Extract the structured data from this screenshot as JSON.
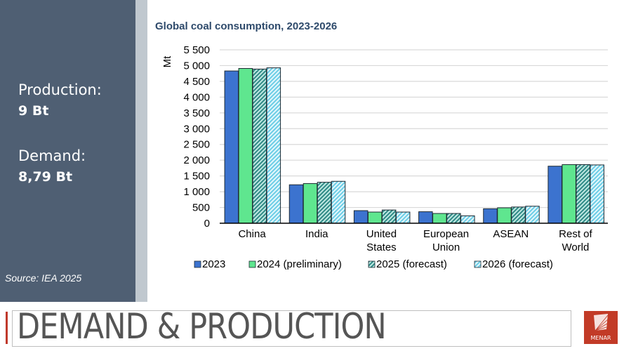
{
  "sidebar": {
    "production_label": "Production:",
    "production_value": "9 Bt",
    "demand_label": "Demand:",
    "demand_value": "8,79 Bt",
    "source": "Source: IEA 2025"
  },
  "footer": {
    "title": "DEMAND & PRODUCTION",
    "logo_text": "MENAR"
  },
  "colors": {
    "panel": "#4f5f73",
    "accent_red": "#c23b27",
    "series": [
      "#3c73cf",
      "#5fe68f",
      "#4fb3a8",
      "#8fdcec"
    ]
  },
  "chart_data": {
    "type": "bar",
    "title": "Global coal consumption, 2023-2026",
    "xlabel": "",
    "ylabel": "Mt",
    "ylim": [
      0,
      5500
    ],
    "yticks": [
      0,
      500,
      1000,
      1500,
      2000,
      2500,
      3000,
      3500,
      4000,
      4500,
      5000,
      5500
    ],
    "ytick_labels": [
      "0",
      "500",
      "1 000",
      "1 500",
      "2 000",
      "2 500",
      "3 000",
      "3 500",
      "4 000",
      "4 500",
      "5 000",
      "5 500"
    ],
    "grid": true,
    "legend_position": "bottom",
    "categories": [
      [
        "China"
      ],
      [
        "India"
      ],
      [
        "United",
        "States"
      ],
      [
        "European",
        "Union"
      ],
      [
        "ASEAN"
      ],
      [
        "Rest of",
        "World"
      ]
    ],
    "series": [
      {
        "name": "2023",
        "values": [
          4830,
          1220,
          400,
          365,
          460,
          1810
        ]
      },
      {
        "name": "2024 (preliminary)",
        "values": [
          4910,
          1260,
          355,
          310,
          490,
          1860
        ]
      },
      {
        "name": "2025 (forecast)",
        "values": [
          4890,
          1300,
          420,
          310,
          515,
          1860
        ]
      },
      {
        "name": "2026 (forecast)",
        "values": [
          4930,
          1330,
          355,
          235,
          540,
          1850
        ]
      }
    ]
  }
}
